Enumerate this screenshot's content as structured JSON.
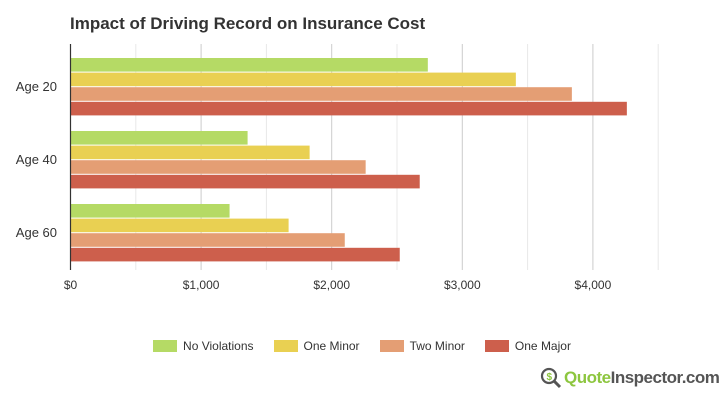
{
  "chart_data": {
    "type": "bar",
    "orientation": "horizontal",
    "title": "Impact of Driving Record on Insurance Cost",
    "categories": [
      "Age 20",
      "Age 40",
      "Age 60"
    ],
    "series": [
      {
        "name": "No Violations",
        "color": "#b5da65",
        "values": [
          2736,
          1356,
          1218
        ]
      },
      {
        "name": "One Minor",
        "color": "#e9d052",
        "values": [
          3410,
          1831,
          1670
        ]
      },
      {
        "name": "Two Minor",
        "color": "#e49e74",
        "values": [
          3839,
          2260,
          2100
        ]
      },
      {
        "name": "One Major",
        "color": "#cd5f4c",
        "values": [
          4260,
          2674,
          2521
        ]
      }
    ],
    "xlim": [
      0,
      5000
    ],
    "xticks": [
      0,
      1000,
      2000,
      3000,
      4000
    ],
    "xtick_labels": [
      "$0",
      "$1,000",
      "$2,000",
      "$3,000",
      "$4,000"
    ],
    "grid": true,
    "legend_position": "bottom"
  },
  "logo": {
    "part1": "Quote",
    "part2": "Inspector.com"
  }
}
